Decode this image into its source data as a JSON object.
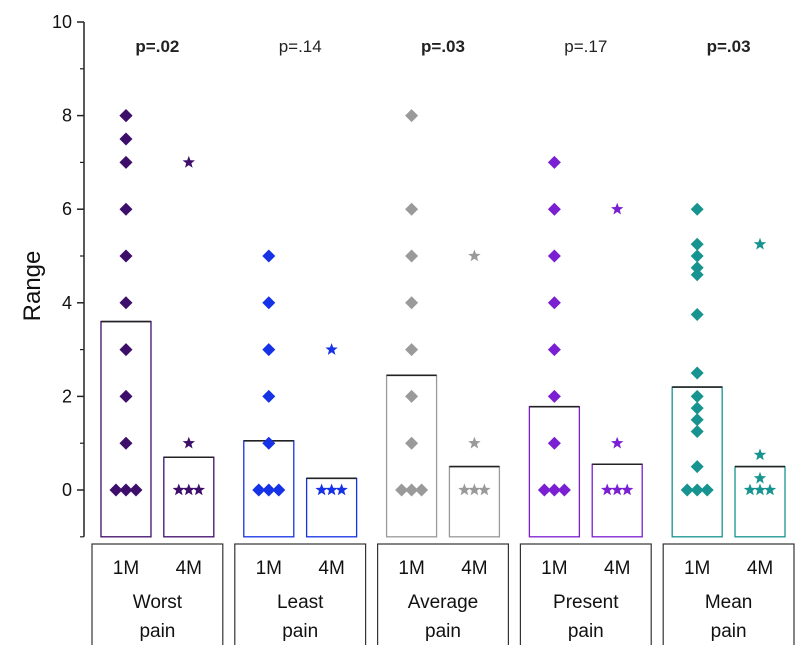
{
  "chart_data": {
    "type": "bar",
    "ylabel": "Range",
    "ylim": [
      -1,
      10
    ],
    "yticks": [
      "0",
      "2",
      "4",
      "6",
      "8",
      "10"
    ],
    "groups": [
      {
        "label": "Worst pain",
        "label_lines": [
          "Worst",
          "pain"
        ],
        "p_value": "p=.02",
        "significant": true,
        "color": "#3d0f6b",
        "bars": [
          {
            "label": "1M",
            "value": 3.6,
            "points": [
              8,
              8,
              7.5,
              7,
              6,
              5,
              4,
              3,
              2,
              1,
              0
            ],
            "marker": "diamond"
          },
          {
            "label": "4M",
            "value": 0.7,
            "points": [
              7,
              1,
              0
            ],
            "marker": "star"
          }
        ]
      },
      {
        "label": "Least pain",
        "label_lines": [
          "Least",
          "pain"
        ],
        "p_value": "p=.14",
        "significant": false,
        "color": "#1632e6",
        "bars": [
          {
            "label": "1M",
            "value": 1.05,
            "points": [
              5,
              4,
              3,
              2,
              1,
              0
            ],
            "marker": "diamond"
          },
          {
            "label": "4M",
            "value": 0.25,
            "points": [
              3,
              0
            ],
            "marker": "star"
          }
        ]
      },
      {
        "label": "Average pain",
        "label_lines": [
          "Average",
          "pain"
        ],
        "p_value": "p=.03",
        "significant": true,
        "color": "#9a9a9a",
        "bars": [
          {
            "label": "1M",
            "value": 2.45,
            "points": [
              8,
              6,
              5,
              4,
              3,
              2,
              1,
              0
            ],
            "marker": "diamond"
          },
          {
            "label": "4M",
            "value": 0.5,
            "points": [
              5,
              1,
              0
            ],
            "marker": "star"
          }
        ]
      },
      {
        "label": "Present pain",
        "label_lines": [
          "Present",
          "pain"
        ],
        "p_value": "p=.17",
        "significant": false,
        "color": "#7a1fd1",
        "bars": [
          {
            "label": "1M",
            "value": 1.78,
            "points": [
              7,
              6,
              5,
              4,
              3,
              2,
              1,
              0
            ],
            "marker": "diamond"
          },
          {
            "label": "4M",
            "value": 0.55,
            "points": [
              6,
              1,
              0
            ],
            "marker": "star"
          }
        ]
      },
      {
        "label": "Mean pain",
        "label_lines": [
          "Mean",
          "pain"
        ],
        "p_value": "p=.03",
        "significant": true,
        "color": "#17948f",
        "bars": [
          {
            "label": "1M",
            "value": 2.2,
            "points": [
              6,
              5.25,
              5,
              4.75,
              4.6,
              3.75,
              2.5,
              2,
              1.75,
              1.5,
              1.25,
              0.5,
              0
            ],
            "marker": "diamond"
          },
          {
            "label": "4M",
            "value": 0.5,
            "points": [
              5.25,
              0.75,
              0.25,
              0
            ],
            "marker": "star"
          }
        ]
      }
    ]
  }
}
